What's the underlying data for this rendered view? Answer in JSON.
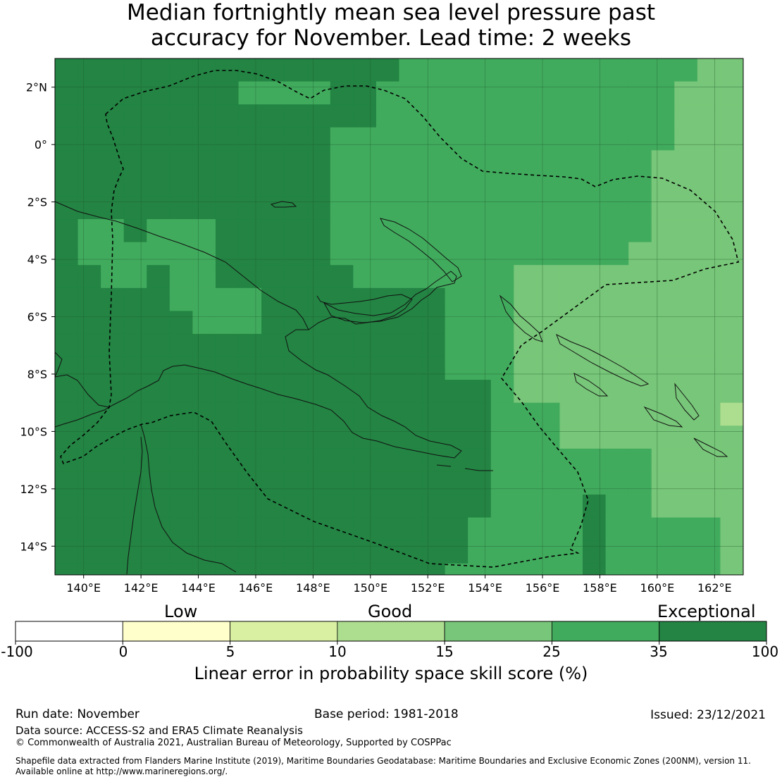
{
  "title": {
    "line1": "Median fortnightly mean sea level pressure past",
    "line2": "accuracy for November. Lead time: 2 weeks"
  },
  "map": {
    "lon_range": [
      139,
      163
    ],
    "lat_range": [
      -15,
      3
    ],
    "lon_ticks": [
      "140°E",
      "142°E",
      "144°E",
      "146°E",
      "148°E",
      "150°E",
      "152°E",
      "154°E",
      "156°E",
      "158°E",
      "160°E",
      "162°E"
    ],
    "lat_ticks": [
      "2°N",
      "0°",
      "2°S",
      "4°S",
      "6°S",
      "8°S",
      "10°S",
      "12°S",
      "14°S"
    ],
    "category_colors": [
      "#ffffff",
      "#ffffcc",
      "#d9f0a3",
      "#addd8e",
      "#78c679",
      "#41ab5d",
      "#238443"
    ]
  },
  "colorbar": {
    "categories": [
      "Low",
      "Good",
      "Exceptional"
    ],
    "ticks": [
      "-100",
      "0",
      "5",
      "10",
      "15",
      "25",
      "35",
      "100"
    ],
    "title": "Linear error in probability space skill score (%)"
  },
  "footer": {
    "run_date": "Run date: November",
    "base_period": "Base period: 1981-2018",
    "issued": "Issued: 23/12/2021",
    "data_source": "Data source: ACCESS-S2 and ERA5 Climate Reanalysis",
    "copyright": "© Commonwealth of Australia 2021, Australian Bureau of Meteorology, Supported by COSPPac",
    "shapefile_line1": "Shapefile data extracted from Flanders Marine Institute (2019), Maritime Boundaries Geodatabase: Maritime Boundaries and Exclusive Economic Zones (200NM), version 11.",
    "shapefile_line2": "Available online at http://www.marineregions.org/."
  }
}
